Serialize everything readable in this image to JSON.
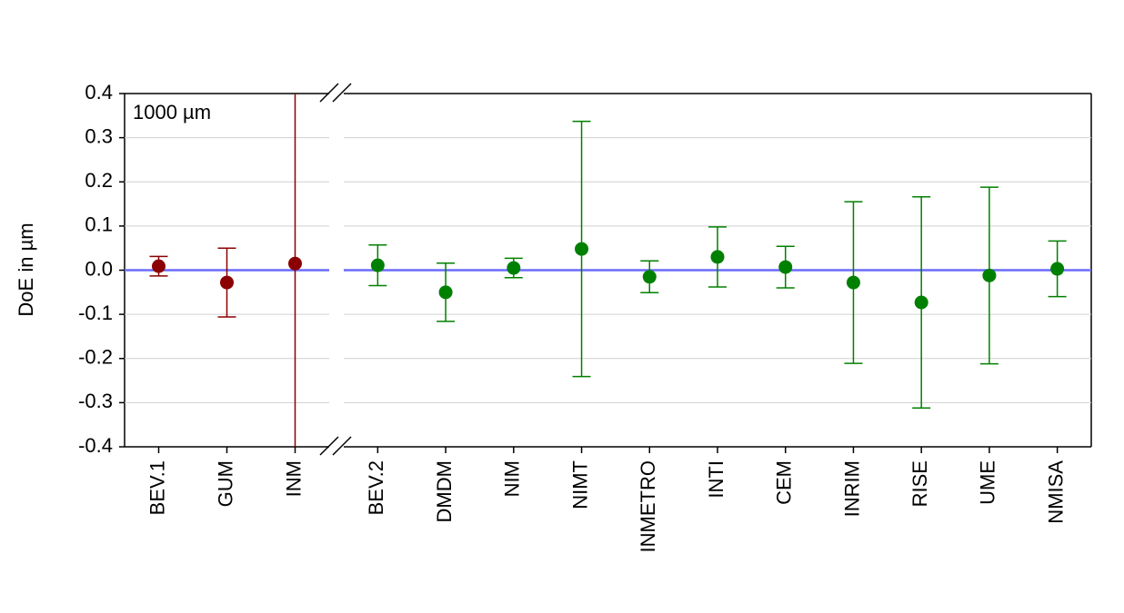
{
  "chart_data": [
    {
      "type": "errorbar",
      "ylabel": "DoE in µm",
      "annotation": "1000 µm",
      "categories": [
        "BEV.1",
        "GUM",
        "INM"
      ],
      "values": [
        0.009,
        -0.028,
        0.015
      ],
      "errors": [
        0.022,
        0.078,
        0.6
      ],
      "color": "#8b0000",
      "ylim": [
        -0.4,
        0.4
      ],
      "yticks": [
        -0.4,
        -0.3,
        -0.2,
        -0.1,
        {
          "value": 0,
          "label": "0.0"
        },
        0.1,
        0.2,
        0.3,
        0.4
      ],
      "grid": true,
      "hline": 0,
      "hline_color": "#6b6bff"
    },
    {
      "type": "errorbar",
      "categories": [
        "BEV.2",
        "DMDM",
        "NIM",
        "NIMT",
        "INMETRO",
        "INTI",
        "CEM",
        "INRIM",
        "RISE",
        "UME",
        "NMISA"
      ],
      "values": [
        0.011,
        -0.05,
        0.005,
        0.048,
        -0.015,
        0.03,
        0.007,
        -0.028,
        -0.073,
        -0.012,
        0.003
      ],
      "errors": [
        0.046,
        0.066,
        0.022,
        0.289,
        0.036,
        0.068,
        0.047,
        0.183,
        0.239,
        0.2,
        0.063
      ],
      "color": "#008000",
      "ylim": [
        -0.4,
        0.4
      ],
      "grid": true,
      "hline": 0,
      "hline_color": "#6b6bff"
    }
  ]
}
